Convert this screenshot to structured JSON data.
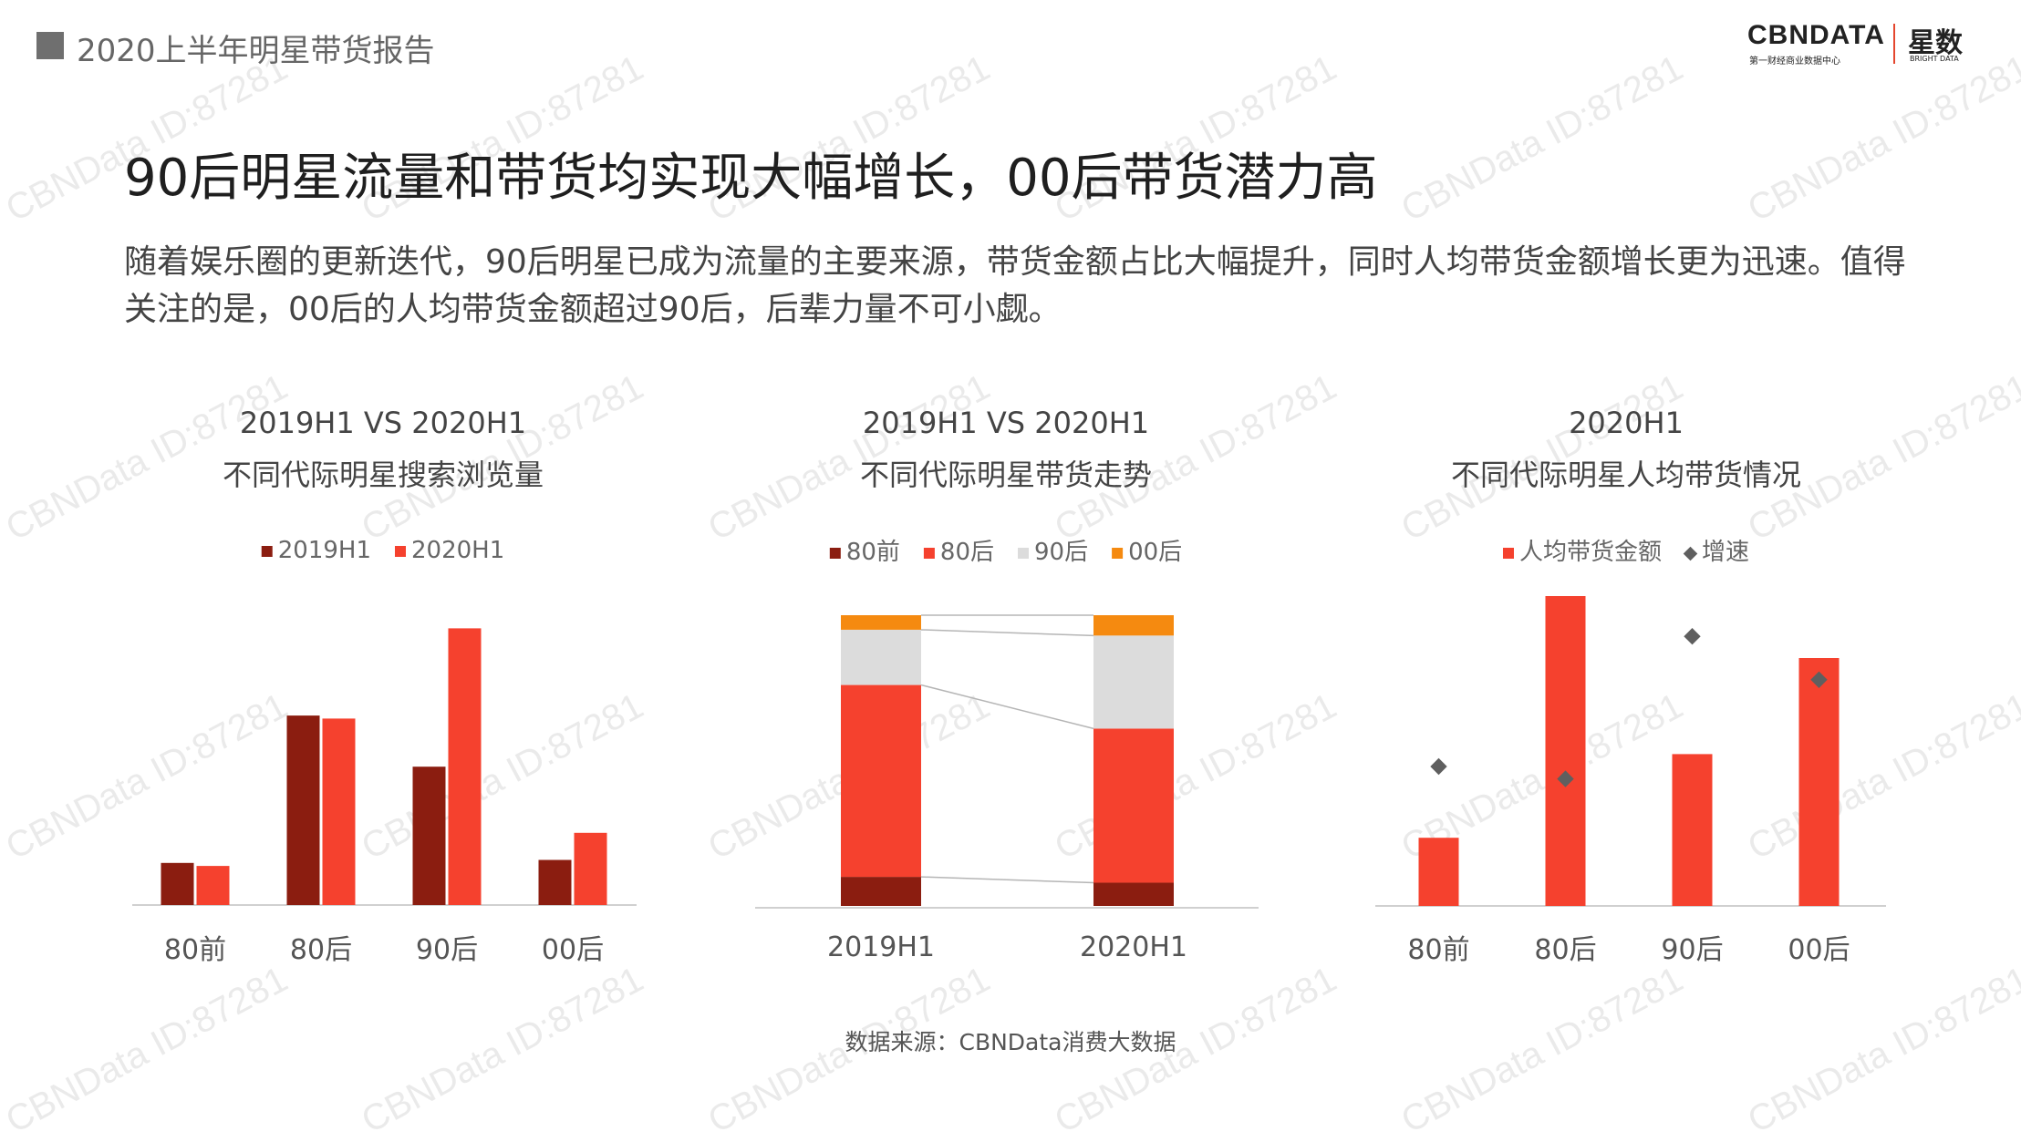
{
  "header": {
    "report_title": "2020上半年明星带货报告",
    "logo_main": "CBNDATA",
    "logo_sub": "第一财经商业数据中心",
    "logo_brand": "星数",
    "logo_brand_sub": "BRIGHT DATA"
  },
  "headline": "90后明星流量和带货均实现大幅增长，00后带货潜力高",
  "description": "随着娱乐圈的更新迭代，90后明星已成为流量的主要来源，带货金额占比大幅提升，同时人均带货金额增长更为迅速。值得关注的是，00后的人均带货金额超过90后，后辈力量不可小觑。",
  "source": "数据来源：CBNData消费大数据",
  "watermark": "CBNData ID:87281",
  "colors": {
    "dark_red": "#8b1d10",
    "red": "#f5412e",
    "light_gray": "#dcdcdc",
    "orange": "#f58a10",
    "marker": "#5f5f5f",
    "axis": "#d0d0d0"
  },
  "chart_data": [
    {
      "type": "bar",
      "title": "2019H1 VS 2020H1",
      "subtitle": "不同代际明星搜索浏览量",
      "categories": [
        "80前",
        "80后",
        "90后",
        "00后"
      ],
      "series": [
        {
          "name": "2019H1",
          "values": [
            14,
            63,
            46,
            15
          ]
        },
        {
          "name": "2020H1",
          "values": [
            13,
            62,
            92,
            24
          ]
        }
      ],
      "ylim": [
        0,
        100
      ],
      "legend": "top",
      "grid": false
    },
    {
      "type": "bar",
      "stacked": true,
      "percent": true,
      "title": "2019H1 VS 2020H1",
      "subtitle": "不同代际明星带货走势",
      "categories": [
        "2019H1",
        "2020H1"
      ],
      "series": [
        {
          "name": "80前",
          "values": [
            10,
            8
          ]
        },
        {
          "name": "80后",
          "values": [
            66,
            53
          ]
        },
        {
          "name": "90后",
          "values": [
            19,
            32
          ]
        },
        {
          "name": "00后",
          "values": [
            5,
            7
          ]
        }
      ],
      "ylim": [
        0,
        100
      ],
      "legend": "top",
      "grid": false
    },
    {
      "type": "bar",
      "title": "2020H1",
      "subtitle": "不同代际明星人均带货情况",
      "categories": [
        "80前",
        "80后",
        "90后",
        "00后"
      ],
      "series": [
        {
          "name": "人均带货金额",
          "type": "bar",
          "values": [
            22,
            100,
            49,
            80
          ]
        },
        {
          "name": "增速",
          "type": "scatter",
          "marker": "diamond",
          "values": [
            45,
            41,
            87,
            73
          ]
        }
      ],
      "ylim": [
        0,
        100
      ],
      "legend": "top",
      "grid": false
    }
  ]
}
